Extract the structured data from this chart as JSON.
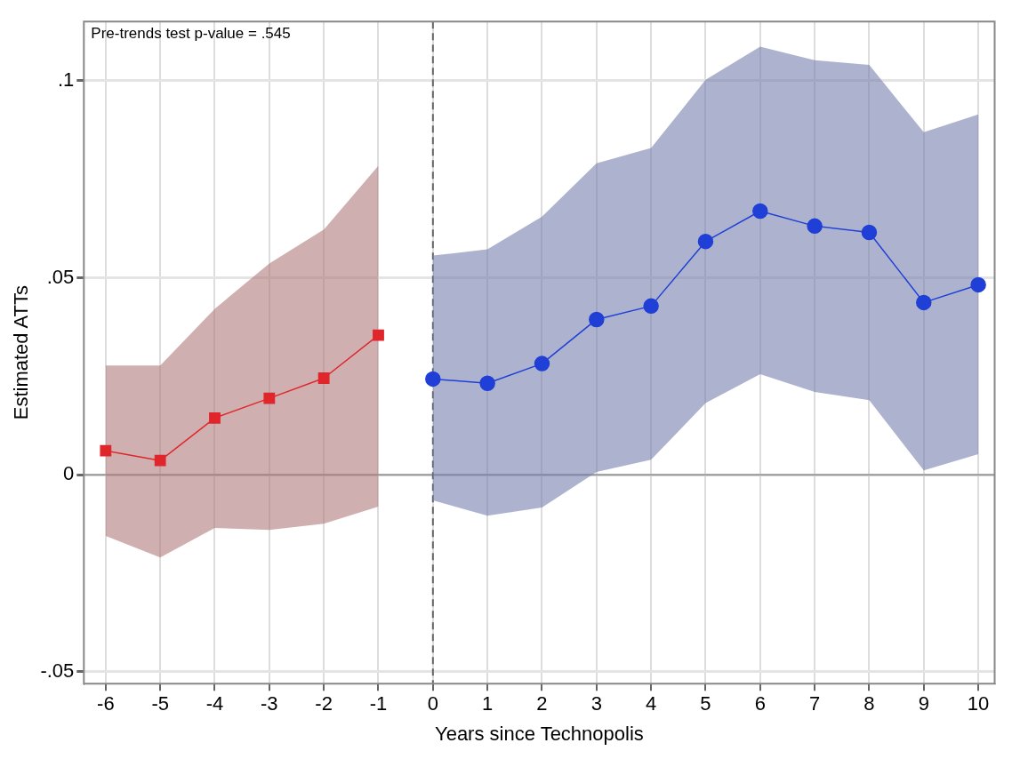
{
  "chart_data": {
    "type": "line",
    "xlabel": "Years since Technopolis",
    "ylabel": "Estimated ATTs",
    "annotations": [
      "Pre-trends test p-value = .545"
    ],
    "xlim": [
      -6.4,
      10.3
    ],
    "xticks": [
      -6,
      -5,
      -4,
      -3,
      -2,
      -1,
      0,
      1,
      2,
      3,
      4,
      5,
      6,
      7,
      8,
      9,
      10
    ],
    "ylim": [
      -0.053,
      0.115
    ],
    "yticks": [
      {
        "value": -0.05,
        "label": "-.05"
      },
      {
        "value": 0,
        "label": "0"
      },
      {
        "value": 0.05,
        "label": ".05"
      },
      {
        "value": 0.1,
        "label": ".1"
      }
    ],
    "grid": true,
    "legend": false,
    "ref_lines": [
      {
        "axis": "y",
        "value": 0,
        "color": "#999999",
        "line_style": "solid"
      },
      {
        "axis": "x",
        "value": 0,
        "color": "#666666",
        "line_style": "dashed"
      }
    ],
    "series": [
      {
        "color": "#e0262b",
        "marker": "square",
        "x": [
          -6,
          -5,
          -4,
          -3,
          -2,
          -1
        ],
        "values": [
          0.0061,
          0.0036,
          0.0144,
          0.0194,
          0.0245,
          0.0354
        ],
        "upper": [
          0.0277,
          0.0277,
          0.0421,
          0.0536,
          0.0622,
          0.0784
        ],
        "lower": [
          -0.0155,
          -0.021,
          -0.0135,
          -0.014,
          -0.0124,
          -0.0081
        ]
      },
      {
        "color": "#1f3fd6",
        "marker": "circle",
        "x": [
          0,
          1,
          2,
          3,
          4,
          5,
          6,
          7,
          8,
          9,
          10
        ],
        "values": [
          0.0243,
          0.0232,
          0.0282,
          0.0394,
          0.0428,
          0.0592,
          0.0669,
          0.0631,
          0.0615,
          0.0437,
          0.0482
        ],
        "upper": [
          0.0556,
          0.0572,
          0.0655,
          0.079,
          0.0829,
          0.1002,
          0.1086,
          0.1052,
          0.104,
          0.0869,
          0.0914
        ],
        "lower": [
          -0.0065,
          -0.0104,
          -0.0083,
          0.0007,
          0.0038,
          0.0182,
          0.0255,
          0.021,
          0.0189,
          0.0011,
          0.0052
        ]
      }
    ]
  }
}
